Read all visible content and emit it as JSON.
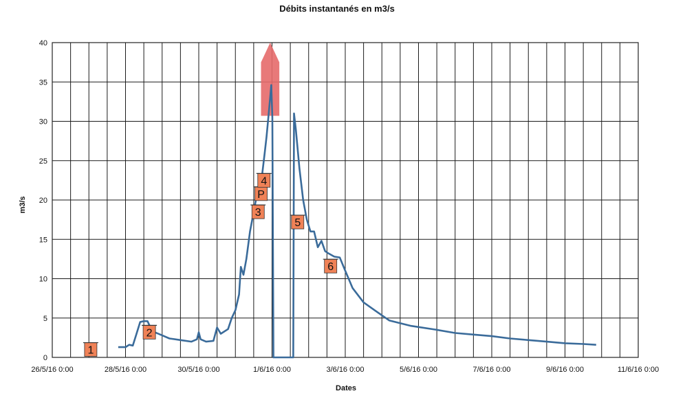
{
  "chart_data": {
    "type": "line",
    "title": "Débits instantanés en m3/s",
    "xlabel": "Dates",
    "ylabel": "m3/s",
    "ylim": [
      0,
      40
    ],
    "yticks": [
      0,
      5,
      10,
      15,
      20,
      25,
      30,
      35,
      40
    ],
    "xlim": [
      "2016-05-26 00:00",
      "2016-06-11 00:00"
    ],
    "xtick_labels": [
      "26/5/16 0:00",
      "28/5/16 0:00",
      "30/5/16 0:00",
      "1/6/16 0:00",
      "3/6/16 0:00",
      "5/6/16 0:00",
      "7/6/16 0:00",
      "9/6/16 0:00",
      "11/6/16 0:00"
    ],
    "xtick_days": [
      26,
      28,
      30,
      32,
      34,
      36,
      38,
      40,
      42
    ],
    "grid": true,
    "legend": "none",
    "line_color": "#3a6b9a",
    "arrow_color": "#e66a6a",
    "marker_color": "#f08257",
    "series_points": [
      [
        27.8,
        1.3
      ],
      [
        28.0,
        1.3
      ],
      [
        28.1,
        1.6
      ],
      [
        28.2,
        1.5
      ],
      [
        28.3,
        3.0
      ],
      [
        28.4,
        4.5
      ],
      [
        28.5,
        4.6
      ],
      [
        28.6,
        4.6
      ],
      [
        28.7,
        3.6
      ],
      [
        28.8,
        3.2
      ],
      [
        29.0,
        2.8
      ],
      [
        29.2,
        2.4
      ],
      [
        29.5,
        2.2
      ],
      [
        29.8,
        2.0
      ],
      [
        29.95,
        2.3
      ],
      [
        30.0,
        3.2
      ],
      [
        30.05,
        2.3
      ],
      [
        30.2,
        2.0
      ],
      [
        30.4,
        2.1
      ],
      [
        30.5,
        3.8
      ],
      [
        30.6,
        3.0
      ],
      [
        30.8,
        3.6
      ],
      [
        30.9,
        5.0
      ],
      [
        31.0,
        6.0
      ],
      [
        31.1,
        8.0
      ],
      [
        31.15,
        11.5
      ],
      [
        31.22,
        10.5
      ],
      [
        31.3,
        12.5
      ],
      [
        31.4,
        16.0
      ],
      [
        31.5,
        18.5
      ],
      [
        31.6,
        21.0
      ],
      [
        31.7,
        22.0
      ],
      [
        31.75,
        24.0
      ],
      [
        31.8,
        26.0
      ],
      [
        31.85,
        28.0
      ],
      [
        31.9,
        30.5
      ],
      [
        31.95,
        33.0
      ],
      [
        31.98,
        34.6
      ],
      [
        32.01,
        30.5
      ],
      [
        32.04,
        0
      ],
      [
        32.58,
        0
      ],
      [
        32.6,
        31.0
      ],
      [
        32.65,
        29.0
      ],
      [
        32.75,
        24.0
      ],
      [
        32.85,
        20.0
      ],
      [
        32.95,
        17.5
      ],
      [
        33.05,
        16.0
      ],
      [
        33.15,
        16.0
      ],
      [
        33.25,
        14.0
      ],
      [
        33.35,
        14.8
      ],
      [
        33.45,
        13.5
      ],
      [
        33.55,
        13.2
      ],
      [
        33.7,
        12.8
      ],
      [
        33.85,
        12.7
      ],
      [
        34.0,
        11.0
      ],
      [
        34.2,
        8.8
      ],
      [
        34.5,
        7.0
      ],
      [
        34.8,
        6.0
      ],
      [
        35.2,
        4.7
      ],
      [
        35.8,
        4.0
      ],
      [
        36.5,
        3.5
      ],
      [
        37.0,
        3.1
      ],
      [
        37.5,
        2.9
      ],
      [
        38.0,
        2.7
      ],
      [
        38.5,
        2.4
      ],
      [
        39.0,
        2.2
      ],
      [
        39.5,
        2.0
      ],
      [
        40.0,
        1.8
      ],
      [
        40.5,
        1.7
      ],
      [
        40.85,
        1.6
      ]
    ],
    "arrow": {
      "x_start": 31.7,
      "x_end": 32.2,
      "y_base": 30.7,
      "y_tip": 40
    },
    "annotations": [
      {
        "label": "1",
        "x": 27.05,
        "y": 1.0
      },
      {
        "label": "2",
        "x": 28.65,
        "y": 3.2
      },
      {
        "label": "3",
        "x": 31.62,
        "y": 18.5
      },
      {
        "label": "P",
        "x": 31.7,
        "y": 20.8
      },
      {
        "label": "4",
        "x": 31.78,
        "y": 22.5
      },
      {
        "label": "5",
        "x": 32.7,
        "y": 17.2
      },
      {
        "label": "6",
        "x": 33.6,
        "y": 11.6
      }
    ]
  }
}
